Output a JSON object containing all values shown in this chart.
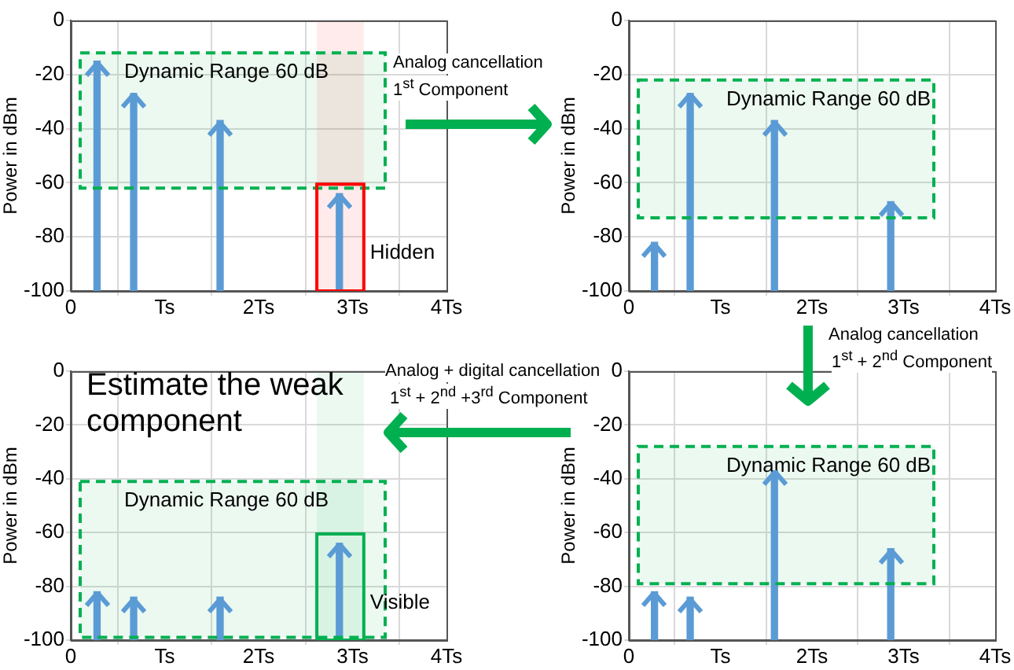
{
  "chart_data": [
    {
      "type": "bar",
      "x": [
        0.28,
        0.67,
        1.59,
        2.86
      ],
      "base": [
        -100,
        -100,
        -100,
        -100
      ],
      "values": [
        85,
        73,
        63,
        36
      ],
      "color": "#5b9bd5",
      "ylabel": "Power in dBm",
      "xlim": [
        0,
        4
      ],
      "ylim": [
        -100,
        0
      ],
      "xticks": [
        {
          "value": 0,
          "label": "0"
        },
        {
          "value": 1,
          "label": "Ts"
        },
        {
          "value": 2,
          "label": "2Ts"
        },
        {
          "value": 3,
          "label": "3Ts"
        },
        {
          "value": 4,
          "label": "4Ts"
        }
      ],
      "yticks": [
        -100,
        -80,
        -60,
        -40,
        -20,
        0
      ],
      "grid": true,
      "bands": [
        {
          "axis": "y",
          "from": -62,
          "to": -12,
          "label": "Dynamic Range 60 dB",
          "color": "#00b050"
        },
        {
          "axis": "x",
          "from": 2.62,
          "to": 3.12,
          "label": "Hidden",
          "color": "#ff0000"
        }
      ],
      "annotations": [
        "Analog cancellation",
        "1$^{st}$ Component"
      ]
    },
    {
      "type": "bar",
      "x": [
        0.28,
        0.67,
        1.59,
        2.86
      ],
      "base": [
        -100,
        -100,
        -100,
        -100
      ],
      "values": [
        18,
        73,
        63,
        33
      ],
      "color": "#5b9bd5",
      "ylabel": "Power in dBm",
      "xlim": [
        0,
        4
      ],
      "ylim": [
        -100,
        0
      ],
      "xticks": [
        {
          "value": 0,
          "label": "0"
        },
        {
          "value": 1,
          "label": "Ts"
        },
        {
          "value": 2,
          "label": "2Ts"
        },
        {
          "value": 3,
          "label": "3Ts"
        },
        {
          "value": 4,
          "label": "4Ts"
        }
      ],
      "yticks": [
        -100,
        -80,
        -60,
        -40,
        -20,
        0
      ],
      "grid": true,
      "bands": [
        {
          "axis": "y",
          "from": -73,
          "to": -22,
          "label": "Dynamic Range 60 dB",
          "color": "#00b050"
        }
      ],
      "annotations": [
        "Analog cancellation",
        "1$^{st}$ + 2$^{nd}$ Component"
      ]
    },
    {
      "type": "bar",
      "x": [
        0.28,
        0.67,
        1.59,
        2.86
      ],
      "base": [
        -100,
        -100,
        -100,
        -100
      ],
      "values": [
        18,
        16,
        16,
        36
      ],
      "color": "#5b9bd5",
      "ylabel": "Power in dBm",
      "xlim": [
        0,
        4
      ],
      "ylim": [
        -100,
        0
      ],
      "xticks": [
        {
          "value": 0,
          "label": "0"
        },
        {
          "value": 1,
          "label": "Ts"
        },
        {
          "value": 2,
          "label": "2Ts"
        },
        {
          "value": 3,
          "label": "3Ts"
        },
        {
          "value": 4,
          "label": "4Ts"
        }
      ],
      "yticks": [
        -100,
        -80,
        -60,
        -40,
        -20,
        0
      ],
      "grid": true,
      "bands": [
        {
          "axis": "y",
          "from": -99,
          "to": -41,
          "label": "Dynamic Range 60 dB",
          "color": "#00b050"
        },
        {
          "axis": "x",
          "from": 2.62,
          "to": 3.12,
          "label": "Visible",
          "color": "#00b050"
        }
      ],
      "annotations": [
        "Estimate the weak component"
      ]
    },
    {
      "type": "bar",
      "x": [
        0.28,
        0.67,
        1.59,
        2.86
      ],
      "base": [
        -100,
        -100,
        -100,
        -100
      ],
      "values": [
        18,
        16,
        63,
        34
      ],
      "color": "#5b9bd5",
      "ylabel": "Power in dBm",
      "xlim": [
        0,
        4
      ],
      "ylim": [
        -100,
        0
      ],
      "xticks": [
        {
          "value": 0,
          "label": "0"
        },
        {
          "value": 1,
          "label": "Ts"
        },
        {
          "value": 2,
          "label": "2Ts"
        },
        {
          "value": 3,
          "label": "3Ts"
        },
        {
          "value": 4,
          "label": "4Ts"
        }
      ],
      "yticks": [
        -100,
        -80,
        -60,
        -40,
        -20,
        0
      ],
      "grid": true,
      "bands": [
        {
          "axis": "y",
          "from": -79,
          "to": -28,
          "label": "Dynamic Range 60 dB",
          "color": "#00b050"
        }
      ],
      "annotations": [
        "Analog + digital cancellation",
        "1$^{st}$ + 2$^{nd}$ +3$^{rd}$ Component"
      ]
    }
  ]
}
